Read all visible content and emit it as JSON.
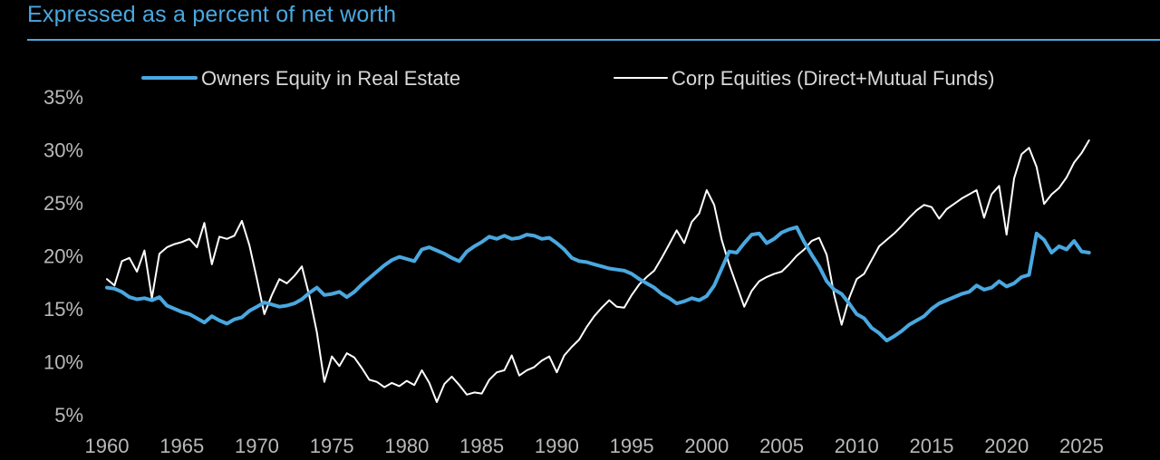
{
  "header": {
    "title": "Expressed as a percent of net worth"
  },
  "colors": {
    "accent": "#4aa8e0",
    "equity_line": "#ffffff",
    "background": "#000000"
  },
  "chart_data": {
    "type": "line",
    "title": "",
    "xlabel": "",
    "ylabel": "",
    "xlim": [
      1960,
      2026
    ],
    "ylim": [
      5,
      35
    ],
    "y_ticks": [
      5,
      10,
      15,
      20,
      25,
      30,
      35
    ],
    "y_tick_labels": [
      "5%",
      "10%",
      "15%",
      "20%",
      "25%",
      "30%",
      "35%"
    ],
    "x_ticks": [
      1960,
      1965,
      1970,
      1975,
      1980,
      1985,
      1990,
      1995,
      2000,
      2005,
      2010,
      2015,
      2020,
      2025
    ],
    "x_tick_labels": [
      "1960",
      "1965",
      "1970",
      "1975",
      "1980",
      "1985",
      "1990",
      "1995",
      "2000",
      "2005",
      "2010",
      "2015",
      "2020",
      "2025"
    ],
    "grid": false,
    "legend_position": "top",
    "series": [
      {
        "name": "Owners Equity in Real Estate",
        "color": "#4aa8e0",
        "points": [
          [
            1960.0,
            17.0
          ],
          [
            1960.5,
            16.9
          ],
          [
            1961.0,
            16.6
          ],
          [
            1961.5,
            16.1
          ],
          [
            1962.0,
            15.9
          ],
          [
            1962.5,
            16.0
          ],
          [
            1963.0,
            15.8
          ],
          [
            1963.5,
            16.1
          ],
          [
            1964.0,
            15.3
          ],
          [
            1964.5,
            15.0
          ],
          [
            1965.0,
            14.7
          ],
          [
            1965.5,
            14.5
          ],
          [
            1966.0,
            14.1
          ],
          [
            1966.5,
            13.7
          ],
          [
            1967.0,
            14.3
          ],
          [
            1967.5,
            13.9
          ],
          [
            1968.0,
            13.6
          ],
          [
            1968.5,
            14.0
          ],
          [
            1969.0,
            14.2
          ],
          [
            1969.5,
            14.8
          ],
          [
            1970.0,
            15.2
          ],
          [
            1970.5,
            15.6
          ],
          [
            1971.0,
            15.4
          ],
          [
            1971.5,
            15.2
          ],
          [
            1972.0,
            15.3
          ],
          [
            1972.5,
            15.5
          ],
          [
            1973.0,
            15.9
          ],
          [
            1973.5,
            16.5
          ],
          [
            1974.0,
            17.0
          ],
          [
            1974.5,
            16.3
          ],
          [
            1975.0,
            16.4
          ],
          [
            1975.5,
            16.6
          ],
          [
            1976.0,
            16.1
          ],
          [
            1976.5,
            16.6
          ],
          [
            1977.0,
            17.3
          ],
          [
            1977.5,
            17.9
          ],
          [
            1978.0,
            18.5
          ],
          [
            1978.5,
            19.1
          ],
          [
            1979.0,
            19.6
          ],
          [
            1979.5,
            19.9
          ],
          [
            1980.0,
            19.7
          ],
          [
            1980.5,
            19.5
          ],
          [
            1981.0,
            20.6
          ],
          [
            1981.5,
            20.8
          ],
          [
            1982.0,
            20.5
          ],
          [
            1982.5,
            20.2
          ],
          [
            1983.0,
            19.8
          ],
          [
            1983.5,
            19.5
          ],
          [
            1984.0,
            20.4
          ],
          [
            1984.5,
            20.9
          ],
          [
            1985.0,
            21.3
          ],
          [
            1985.5,
            21.8
          ],
          [
            1986.0,
            21.6
          ],
          [
            1986.5,
            21.9
          ],
          [
            1987.0,
            21.6
          ],
          [
            1987.5,
            21.7
          ],
          [
            1988.0,
            22.0
          ],
          [
            1988.5,
            21.9
          ],
          [
            1989.0,
            21.6
          ],
          [
            1989.5,
            21.7
          ],
          [
            1990.0,
            21.2
          ],
          [
            1990.5,
            20.6
          ],
          [
            1991.0,
            19.8
          ],
          [
            1991.5,
            19.5
          ],
          [
            1992.0,
            19.4
          ],
          [
            1992.5,
            19.2
          ],
          [
            1993.0,
            19.0
          ],
          [
            1993.5,
            18.8
          ],
          [
            1994.0,
            18.7
          ],
          [
            1994.5,
            18.6
          ],
          [
            1995.0,
            18.3
          ],
          [
            1995.5,
            17.8
          ],
          [
            1996.0,
            17.4
          ],
          [
            1996.5,
            17.0
          ],
          [
            1997.0,
            16.4
          ],
          [
            1997.5,
            16.0
          ],
          [
            1998.0,
            15.5
          ],
          [
            1998.5,
            15.7
          ],
          [
            1999.0,
            16.0
          ],
          [
            1999.5,
            15.8
          ],
          [
            2000.0,
            16.2
          ],
          [
            2000.5,
            17.2
          ],
          [
            2001.0,
            18.8
          ],
          [
            2001.5,
            20.4
          ],
          [
            2002.0,
            20.3
          ],
          [
            2002.5,
            21.2
          ],
          [
            2003.0,
            22.0
          ],
          [
            2003.5,
            22.1
          ],
          [
            2004.0,
            21.2
          ],
          [
            2004.5,
            21.6
          ],
          [
            2005.0,
            22.2
          ],
          [
            2005.5,
            22.5
          ],
          [
            2006.0,
            22.7
          ],
          [
            2006.5,
            21.3
          ],
          [
            2007.0,
            20.1
          ],
          [
            2007.5,
            19.0
          ],
          [
            2008.0,
            17.6
          ],
          [
            2008.5,
            16.8
          ],
          [
            2009.0,
            16.4
          ],
          [
            2009.5,
            15.5
          ],
          [
            2010.0,
            14.5
          ],
          [
            2010.5,
            14.1
          ],
          [
            2011.0,
            13.2
          ],
          [
            2011.5,
            12.7
          ],
          [
            2012.0,
            12.0
          ],
          [
            2012.5,
            12.4
          ],
          [
            2013.0,
            12.9
          ],
          [
            2013.5,
            13.5
          ],
          [
            2014.0,
            13.9
          ],
          [
            2014.5,
            14.3
          ],
          [
            2015.0,
            15.0
          ],
          [
            2015.5,
            15.5
          ],
          [
            2016.0,
            15.8
          ],
          [
            2016.5,
            16.1
          ],
          [
            2017.0,
            16.4
          ],
          [
            2017.5,
            16.6
          ],
          [
            2018.0,
            17.2
          ],
          [
            2018.5,
            16.8
          ],
          [
            2019.0,
            17.0
          ],
          [
            2019.5,
            17.6
          ],
          [
            2020.0,
            17.1
          ],
          [
            2020.5,
            17.4
          ],
          [
            2021.0,
            18.0
          ],
          [
            2021.5,
            18.2
          ],
          [
            2022.0,
            22.1
          ],
          [
            2022.5,
            21.5
          ],
          [
            2023.0,
            20.3
          ],
          [
            2023.5,
            20.9
          ],
          [
            2024.0,
            20.6
          ],
          [
            2024.5,
            21.4
          ],
          [
            2025.0,
            20.4
          ],
          [
            2025.5,
            20.3
          ]
        ]
      },
      {
        "name": "Corp Equities (Direct+Mutual Funds)",
        "color": "#ffffff",
        "points": [
          [
            1960.0,
            17.8
          ],
          [
            1960.5,
            17.2
          ],
          [
            1961.0,
            19.5
          ],
          [
            1961.5,
            19.8
          ],
          [
            1962.0,
            18.5
          ],
          [
            1962.5,
            20.5
          ],
          [
            1963.0,
            16.0
          ],
          [
            1963.5,
            20.2
          ],
          [
            1964.0,
            20.8
          ],
          [
            1964.5,
            21.1
          ],
          [
            1965.0,
            21.3
          ],
          [
            1965.5,
            21.6
          ],
          [
            1966.0,
            20.8
          ],
          [
            1966.5,
            23.1
          ],
          [
            1967.0,
            19.2
          ],
          [
            1967.5,
            21.8
          ],
          [
            1968.0,
            21.6
          ],
          [
            1968.5,
            21.9
          ],
          [
            1969.0,
            23.3
          ],
          [
            1969.5,
            21.0
          ],
          [
            1970.0,
            17.8
          ],
          [
            1970.5,
            14.5
          ],
          [
            1971.0,
            16.3
          ],
          [
            1971.5,
            17.8
          ],
          [
            1972.0,
            17.4
          ],
          [
            1972.5,
            18.1
          ],
          [
            1973.0,
            19.0
          ],
          [
            1973.5,
            16.2
          ],
          [
            1974.0,
            12.8
          ],
          [
            1974.5,
            8.1
          ],
          [
            1975.0,
            10.5
          ],
          [
            1975.5,
            9.6
          ],
          [
            1976.0,
            10.8
          ],
          [
            1976.5,
            10.4
          ],
          [
            1977.0,
            9.4
          ],
          [
            1977.5,
            8.3
          ],
          [
            1978.0,
            8.1
          ],
          [
            1978.5,
            7.6
          ],
          [
            1979.0,
            8.0
          ],
          [
            1979.5,
            7.7
          ],
          [
            1980.0,
            8.2
          ],
          [
            1980.5,
            7.8
          ],
          [
            1981.0,
            9.2
          ],
          [
            1981.5,
            8.0
          ],
          [
            1982.0,
            6.2
          ],
          [
            1982.5,
            7.9
          ],
          [
            1983.0,
            8.6
          ],
          [
            1983.5,
            7.8
          ],
          [
            1984.0,
            6.9
          ],
          [
            1984.5,
            7.1
          ],
          [
            1985.0,
            7.0
          ],
          [
            1985.5,
            8.3
          ],
          [
            1986.0,
            9.0
          ],
          [
            1986.5,
            9.2
          ],
          [
            1987.0,
            10.6
          ],
          [
            1987.5,
            8.7
          ],
          [
            1988.0,
            9.2
          ],
          [
            1988.5,
            9.5
          ],
          [
            1989.0,
            10.1
          ],
          [
            1989.5,
            10.5
          ],
          [
            1990.0,
            9.0
          ],
          [
            1990.5,
            10.6
          ],
          [
            1991.0,
            11.4
          ],
          [
            1991.5,
            12.1
          ],
          [
            1992.0,
            13.3
          ],
          [
            1992.5,
            14.3
          ],
          [
            1993.0,
            15.1
          ],
          [
            1993.5,
            15.8
          ],
          [
            1994.0,
            15.2
          ],
          [
            1994.5,
            15.1
          ],
          [
            1995.0,
            16.3
          ],
          [
            1995.5,
            17.3
          ],
          [
            1996.0,
            18.0
          ],
          [
            1996.5,
            18.6
          ],
          [
            1997.0,
            19.8
          ],
          [
            1997.5,
            21.1
          ],
          [
            1998.0,
            22.4
          ],
          [
            1998.5,
            21.2
          ],
          [
            1999.0,
            23.2
          ],
          [
            1999.5,
            24.0
          ],
          [
            2000.0,
            26.2
          ],
          [
            2000.5,
            24.8
          ],
          [
            2001.0,
            21.5
          ],
          [
            2001.5,
            19.2
          ],
          [
            2002.0,
            17.2
          ],
          [
            2002.5,
            15.2
          ],
          [
            2003.0,
            16.7
          ],
          [
            2003.5,
            17.6
          ],
          [
            2004.0,
            18.0
          ],
          [
            2004.5,
            18.3
          ],
          [
            2005.0,
            18.5
          ],
          [
            2005.5,
            19.2
          ],
          [
            2006.0,
            20.0
          ],
          [
            2006.5,
            20.6
          ],
          [
            2007.0,
            21.4
          ],
          [
            2007.5,
            21.7
          ],
          [
            2008.0,
            20.1
          ],
          [
            2008.5,
            16.3
          ],
          [
            2009.0,
            13.5
          ],
          [
            2009.5,
            16.0
          ],
          [
            2010.0,
            17.8
          ],
          [
            2010.5,
            18.3
          ],
          [
            2011.0,
            19.6
          ],
          [
            2011.5,
            20.9
          ],
          [
            2012.0,
            21.5
          ],
          [
            2012.5,
            22.1
          ],
          [
            2013.0,
            22.8
          ],
          [
            2013.5,
            23.6
          ],
          [
            2014.0,
            24.3
          ],
          [
            2014.5,
            24.8
          ],
          [
            2015.0,
            24.6
          ],
          [
            2015.5,
            23.5
          ],
          [
            2016.0,
            24.4
          ],
          [
            2016.5,
            24.9
          ],
          [
            2017.0,
            25.4
          ],
          [
            2017.5,
            25.8
          ],
          [
            2018.0,
            26.2
          ],
          [
            2018.5,
            23.6
          ],
          [
            2019.0,
            25.8
          ],
          [
            2019.5,
            26.6
          ],
          [
            2020.0,
            22.0
          ],
          [
            2020.5,
            27.3
          ],
          [
            2021.0,
            29.6
          ],
          [
            2021.5,
            30.2
          ],
          [
            2022.0,
            28.4
          ],
          [
            2022.5,
            24.9
          ],
          [
            2023.0,
            25.8
          ],
          [
            2023.5,
            26.4
          ],
          [
            2024.0,
            27.4
          ],
          [
            2024.5,
            28.8
          ],
          [
            2025.0,
            29.7
          ],
          [
            2025.5,
            30.9
          ]
        ]
      }
    ]
  }
}
